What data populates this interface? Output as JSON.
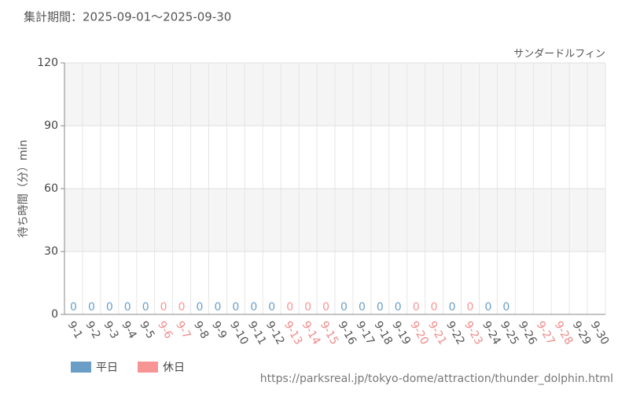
{
  "chart_data": {
    "type": "bar",
    "subtitle": "集計期間：2025-09-01～2025-09-30",
    "title": "サンダードルフィン",
    "y_label": "待ち時間（分）min",
    "source": "https://parksreal.jp/tokyo-dome/attraction/thunder_dolphin.html",
    "categories": [
      "9-1",
      "9-2",
      "9-3",
      "9-4",
      "9-5",
      "9-6",
      "9-7",
      "9-8",
      "9-9",
      "9-10",
      "9-11",
      "9-12",
      "9-13",
      "9-14",
      "9-15",
      "9-16",
      "9-17",
      "9-18",
      "9-19",
      "9-20",
      "9-21",
      "9-22",
      "9-23",
      "9-24",
      "9-25",
      "9-26",
      "9-27",
      "9-28",
      "9-29",
      "9-30"
    ],
    "category_colors": [
      "#555555",
      "#555555",
      "#555555",
      "#555555",
      "#555555",
      "#f08a8a",
      "#f08a8a",
      "#555555",
      "#555555",
      "#555555",
      "#555555",
      "#555555",
      "#f08a8a",
      "#f08a8a",
      "#f08a8a",
      "#555555",
      "#555555",
      "#555555",
      "#555555",
      "#f08a8a",
      "#f08a8a",
      "#555555",
      "#f08a8a",
      "#555555",
      "#555555",
      "#555555",
      "#f08a8a",
      "#f08a8a",
      "#555555",
      "#555555"
    ],
    "series": [
      {
        "name": "平日",
        "color": "#6a9ec7",
        "values": [
          0,
          0,
          0,
          0,
          0,
          null,
          null,
          0,
          0,
          0,
          0,
          0,
          null,
          null,
          null,
          0,
          0,
          0,
          0,
          null,
          null,
          0,
          null,
          0,
          0,
          null,
          null,
          null,
          null,
          null
        ]
      },
      {
        "name": "休日",
        "color": "#f79595",
        "values": [
          null,
          null,
          null,
          null,
          null,
          0,
          0,
          null,
          null,
          null,
          null,
          null,
          0,
          0,
          0,
          null,
          null,
          null,
          null,
          0,
          0,
          null,
          0,
          null,
          null,
          null,
          null,
          null,
          null,
          null
        ]
      }
    ],
    "ylim": [
      0,
      120
    ],
    "yticks": [
      0,
      30,
      60,
      90,
      120
    ],
    "grid": true
  }
}
